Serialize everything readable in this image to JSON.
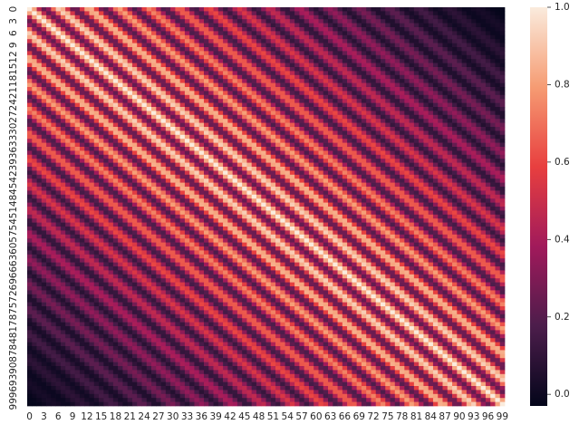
{
  "chart_data": {
    "type": "heatmap",
    "title": "",
    "xlabel": "",
    "ylabel": "",
    "n": 100,
    "matrix_rule": "cell(i,j) = max(0, 1 - |i-j|/100) * (0.62 + 0.38 * cos(2*pi*|i-j|/6.3)) (approx. read from image)",
    "x_tick_labels": [
      "0",
      "3",
      "6",
      "9",
      "12",
      "15",
      "18",
      "21",
      "24",
      "27",
      "30",
      "33",
      "36",
      "39",
      "42",
      "45",
      "48",
      "51",
      "54",
      "57",
      "60",
      "63",
      "66",
      "69",
      "72",
      "75",
      "78",
      "81",
      "84",
      "87",
      "90",
      "93",
      "96",
      "99"
    ],
    "y_tick_labels": [
      "0",
      "3",
      "6",
      "9",
      "12",
      "15",
      "18",
      "21",
      "24",
      "27",
      "30",
      "33",
      "36",
      "39",
      "42",
      "45",
      "48",
      "51",
      "54",
      "57",
      "60",
      "63",
      "66",
      "69",
      "72",
      "75",
      "78",
      "81",
      "84",
      "87",
      "90",
      "93",
      "96",
      "99"
    ],
    "colorbar": {
      "ticks": [
        "0.0",
        "0.2",
        "0.4",
        "0.6",
        "0.8",
        "1.0"
      ],
      "tick_values": [
        0.0,
        0.2,
        0.4,
        0.6,
        0.8,
        1.0
      ],
      "vmin": -0.03,
      "vmax": 1.0
    },
    "colormap": "rocket",
    "colormap_stops": [
      "#03051a",
      "#4c1d4b",
      "#a11a5b",
      "#e83f3f",
      "#f69c73",
      "#faebdd"
    ]
  }
}
